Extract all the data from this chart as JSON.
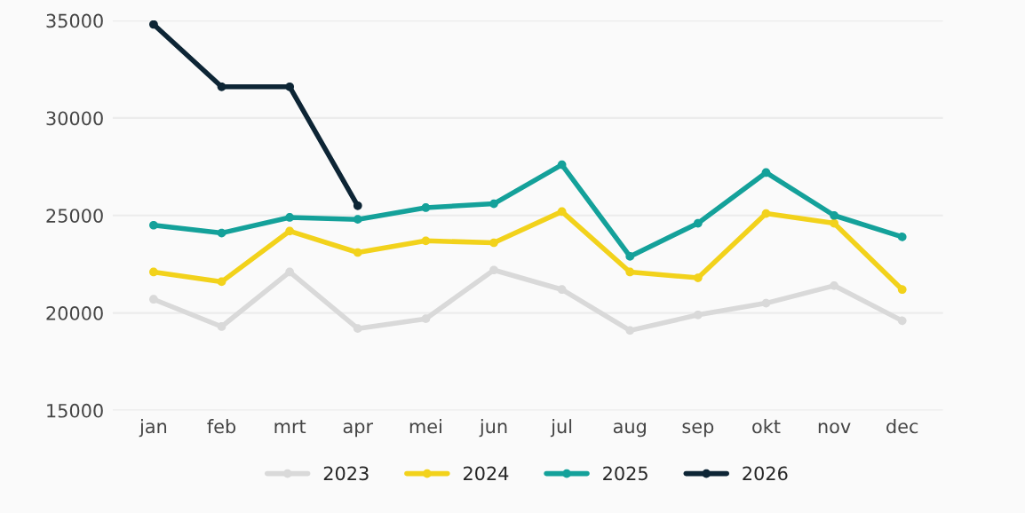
{
  "chart_data": {
    "type": "line",
    "categories": [
      "jan",
      "feb",
      "mrt",
      "apr",
      "mei",
      "jun",
      "jul",
      "aug",
      "sep",
      "okt",
      "nov",
      "dec"
    ],
    "series": [
      {
        "name": "2023",
        "color": "#d9d9d9",
        "values": [
          20700,
          19300,
          22100,
          19200,
          19700,
          22200,
          21200,
          19100,
          19900,
          20500,
          21400,
          19600
        ]
      },
      {
        "name": "2024",
        "color": "#f2d21b",
        "values": [
          22100,
          21600,
          24200,
          23100,
          23700,
          23600,
          25200,
          22100,
          21800,
          25100,
          24600,
          21200
        ]
      },
      {
        "name": "2025",
        "color": "#14a19a",
        "values": [
          24500,
          24100,
          24900,
          24800,
          25400,
          25600,
          27600,
          22900,
          24600,
          27200,
          25000,
          23900
        ]
      },
      {
        "name": "2026",
        "color": "#0d2535",
        "values": [
          34800,
          31600,
          31600,
          25500,
          null,
          null,
          null,
          null,
          null,
          null,
          null,
          null
        ]
      }
    ],
    "ylim": [
      15000,
      35000
    ],
    "yticks": [
      15000,
      20000,
      25000,
      30000,
      35000
    ],
    "grid": "y",
    "legend": "bottom",
    "marker": "circle",
    "line_style": "solid"
  }
}
